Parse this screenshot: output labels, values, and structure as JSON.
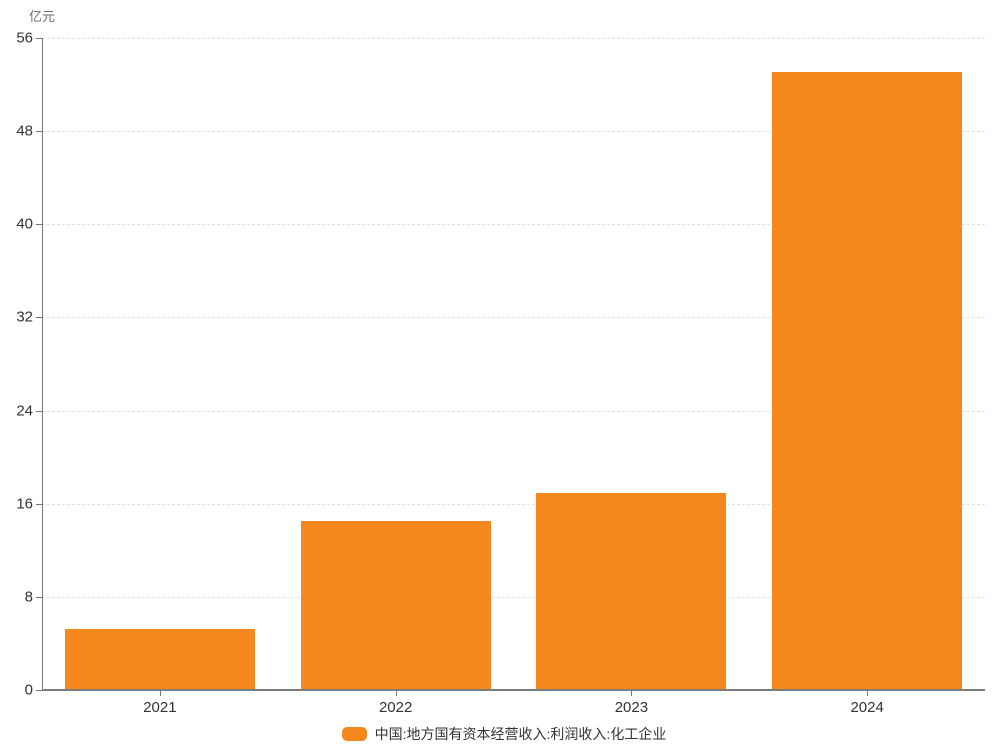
{
  "chart_data": {
    "type": "bar",
    "title": "",
    "xlabel": "",
    "ylabel": "亿元",
    "categories": [
      "2021",
      "2022",
      "2023",
      "2024"
    ],
    "series": [
      {
        "name": "中国:地方国有资本经营收入:利润收入:化工企业",
        "values": [
          5.2,
          14.5,
          16.9,
          53.1
        ],
        "color": "#F5871F"
      }
    ],
    "ylim": [
      0,
      56
    ],
    "ytick_interval": 8,
    "yticks": [
      0,
      8,
      16,
      24,
      32,
      40,
      48,
      56
    ],
    "grid": "horizontal-dashed",
    "legend_position": "bottom"
  },
  "colors": {
    "bar": "#F5871F",
    "axis": "#777777",
    "grid": "#E2E2E2",
    "tick_text": "#333333",
    "unit_text": "#6E6E6E",
    "background": "#FFFFFF"
  }
}
